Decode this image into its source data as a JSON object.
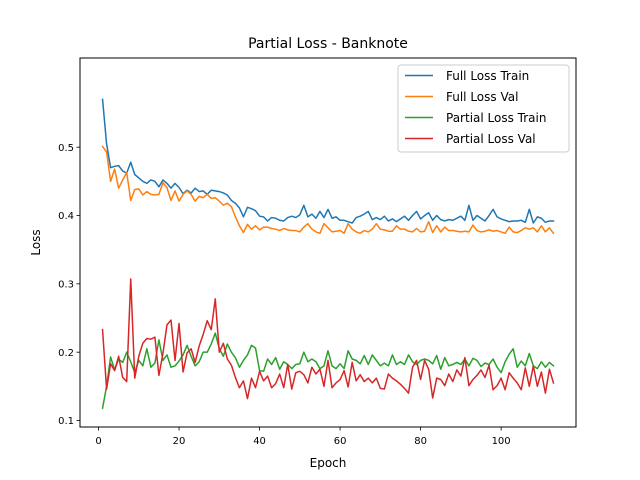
{
  "chart_data": {
    "type": "line",
    "title": "Partial Loss - Banknote",
    "xlabel": "Epoch",
    "ylabel": "Loss",
    "xlim": [
      -4.6,
      118.6
    ],
    "ylim": [
      0.0905,
      0.6305
    ],
    "xticks": [
      0,
      20,
      40,
      60,
      80,
      100
    ],
    "yticks": [
      0.1,
      0.2,
      0.3,
      0.4,
      0.5
    ],
    "ytick_labels": [
      "0.1",
      "0.2",
      "0.3",
      "0.4",
      "0.5"
    ],
    "grid": false,
    "legend_position": "top-right",
    "x": [
      1,
      2,
      3,
      4,
      5,
      6,
      7,
      8,
      9,
      10,
      11,
      12,
      13,
      14,
      15,
      16,
      17,
      18,
      19,
      20,
      21,
      22,
      23,
      24,
      25,
      26,
      27,
      28,
      29,
      30,
      31,
      32,
      33,
      34,
      35,
      36,
      37,
      38,
      39,
      40,
      41,
      42,
      43,
      44,
      45,
      46,
      47,
      48,
      49,
      50,
      51,
      52,
      53,
      54,
      55,
      56,
      57,
      58,
      59,
      60,
      61,
      62,
      63,
      64,
      65,
      66,
      67,
      68,
      69,
      70,
      71,
      72,
      73,
      74,
      75,
      76,
      77,
      78,
      79,
      80,
      81,
      82,
      83,
      84,
      85,
      86,
      87,
      88,
      89,
      90,
      91,
      92,
      93,
      94,
      95,
      96,
      97,
      98,
      99,
      100,
      101,
      102,
      103,
      104,
      105,
      106,
      107,
      108,
      109,
      110,
      111,
      112,
      113
    ],
    "series": [
      {
        "name": "Full Loss Train",
        "color": "#1f77b4",
        "values": [
          0.57,
          0.505,
          0.47,
          0.472,
          0.473,
          0.465,
          0.462,
          0.478,
          0.46,
          0.455,
          0.45,
          0.447,
          0.452,
          0.45,
          0.442,
          0.452,
          0.447,
          0.44,
          0.447,
          0.441,
          0.432,
          0.437,
          0.433,
          0.44,
          0.435,
          0.436,
          0.431,
          0.437,
          0.436,
          0.435,
          0.433,
          0.43,
          0.422,
          0.418,
          0.411,
          0.398,
          0.412,
          0.41,
          0.407,
          0.399,
          0.398,
          0.392,
          0.397,
          0.396,
          0.393,
          0.392,
          0.397,
          0.399,
          0.397,
          0.401,
          0.415,
          0.398,
          0.402,
          0.396,
          0.406,
          0.397,
          0.409,
          0.396,
          0.398,
          0.393,
          0.393,
          0.391,
          0.389,
          0.397,
          0.399,
          0.402,
          0.406,
          0.394,
          0.397,
          0.394,
          0.399,
          0.392,
          0.395,
          0.391,
          0.395,
          0.399,
          0.393,
          0.4,
          0.406,
          0.395,
          0.4,
          0.404,
          0.393,
          0.4,
          0.394,
          0.392,
          0.394,
          0.393,
          0.396,
          0.399,
          0.393,
          0.415,
          0.393,
          0.4,
          0.396,
          0.392,
          0.4,
          0.409,
          0.398,
          0.395,
          0.393,
          0.391,
          0.392,
          0.392,
          0.393,
          0.39,
          0.409,
          0.389,
          0.398,
          0.396,
          0.39,
          0.392,
          0.392
        ]
      },
      {
        "name": "Full Loss Val",
        "color": "#ff7f0e",
        "values": [
          0.501,
          0.493,
          0.45,
          0.468,
          0.44,
          0.452,
          0.463,
          0.422,
          0.438,
          0.439,
          0.43,
          0.435,
          0.431,
          0.43,
          0.431,
          0.448,
          0.441,
          0.422,
          0.436,
          0.421,
          0.431,
          0.436,
          0.431,
          0.421,
          0.428,
          0.426,
          0.431,
          0.425,
          0.426,
          0.421,
          0.415,
          0.418,
          0.413,
          0.398,
          0.385,
          0.375,
          0.387,
          0.38,
          0.385,
          0.379,
          0.383,
          0.383,
          0.381,
          0.38,
          0.378,
          0.381,
          0.379,
          0.378,
          0.378,
          0.376,
          0.383,
          0.388,
          0.38,
          0.376,
          0.374,
          0.388,
          0.382,
          0.376,
          0.377,
          0.378,
          0.374,
          0.388,
          0.38,
          0.376,
          0.374,
          0.378,
          0.376,
          0.38,
          0.388,
          0.38,
          0.379,
          0.377,
          0.377,
          0.385,
          0.38,
          0.38,
          0.377,
          0.376,
          0.381,
          0.376,
          0.377,
          0.391,
          0.375,
          0.385,
          0.376,
          0.383,
          0.378,
          0.378,
          0.377,
          0.376,
          0.377,
          0.376,
          0.386,
          0.378,
          0.376,
          0.377,
          0.379,
          0.377,
          0.378,
          0.376,
          0.374,
          0.383,
          0.376,
          0.375,
          0.378,
          0.382,
          0.38,
          0.382,
          0.376,
          0.385,
          0.376,
          0.382,
          0.374
        ]
      },
      {
        "name": "Partial Loss Train",
        "color": "#2ca02c",
        "values": [
          0.118,
          0.15,
          0.193,
          0.174,
          0.19,
          0.185,
          0.2,
          0.186,
          0.17,
          0.188,
          0.18,
          0.205,
          0.178,
          0.184,
          0.218,
          0.188,
          0.196,
          0.178,
          0.18,
          0.187,
          0.196,
          0.21,
          0.194,
          0.18,
          0.186,
          0.2,
          0.2,
          0.212,
          0.228,
          0.205,
          0.194,
          0.212,
          0.2,
          0.192,
          0.178,
          0.188,
          0.196,
          0.21,
          0.206,
          0.173,
          0.172,
          0.19,
          0.182,
          0.192,
          0.175,
          0.186,
          0.182,
          0.176,
          0.182,
          0.183,
          0.2,
          0.186,
          0.19,
          0.186,
          0.176,
          0.18,
          0.202,
          0.18,
          0.176,
          0.183,
          0.176,
          0.202,
          0.19,
          0.188,
          0.183,
          0.195,
          0.182,
          0.196,
          0.188,
          0.18,
          0.184,
          0.18,
          0.196,
          0.182,
          0.186,
          0.182,
          0.196,
          0.186,
          0.182,
          0.188,
          0.19,
          0.188,
          0.183,
          0.195,
          0.175,
          0.192,
          0.18,
          0.182,
          0.185,
          0.182,
          0.19,
          0.18,
          0.191,
          0.188,
          0.179,
          0.184,
          0.182,
          0.19,
          0.178,
          0.17,
          0.186,
          0.197,
          0.205,
          0.178,
          0.187,
          0.18,
          0.198,
          0.18,
          0.176,
          0.186,
          0.178,
          0.185,
          0.18
        ]
      },
      {
        "name": "Partial Loss Val",
        "color": "#d62728",
        "values": [
          0.233,
          0.146,
          0.183,
          0.173,
          0.194,
          0.163,
          0.157,
          0.307,
          0.162,
          0.194,
          0.213,
          0.22,
          0.219,
          0.222,
          0.166,
          0.198,
          0.24,
          0.247,
          0.188,
          0.242,
          0.171,
          0.199,
          0.205,
          0.185,
          0.209,
          0.226,
          0.246,
          0.233,
          0.278,
          0.2,
          0.213,
          0.19,
          0.181,
          0.163,
          0.148,
          0.158,
          0.132,
          0.162,
          0.148,
          0.172,
          0.158,
          0.165,
          0.148,
          0.154,
          0.168,
          0.148,
          0.182,
          0.146,
          0.17,
          0.172,
          0.167,
          0.155,
          0.178,
          0.168,
          0.175,
          0.15,
          0.188,
          0.148,
          0.155,
          0.16,
          0.173,
          0.149,
          0.185,
          0.158,
          0.167,
          0.157,
          0.162,
          0.155,
          0.162,
          0.147,
          0.146,
          0.168,
          0.162,
          0.158,
          0.153,
          0.147,
          0.14,
          0.178,
          0.188,
          0.16,
          0.188,
          0.175,
          0.133,
          0.162,
          0.16,
          0.151,
          0.168,
          0.157,
          0.174,
          0.165,
          0.192,
          0.151,
          0.16,
          0.166,
          0.174,
          0.163,
          0.181,
          0.145,
          0.151,
          0.162,
          0.145,
          0.17,
          0.162,
          0.155,
          0.145,
          0.177,
          0.15,
          0.18,
          0.15,
          0.171,
          0.14,
          0.175,
          0.155
        ]
      }
    ]
  }
}
